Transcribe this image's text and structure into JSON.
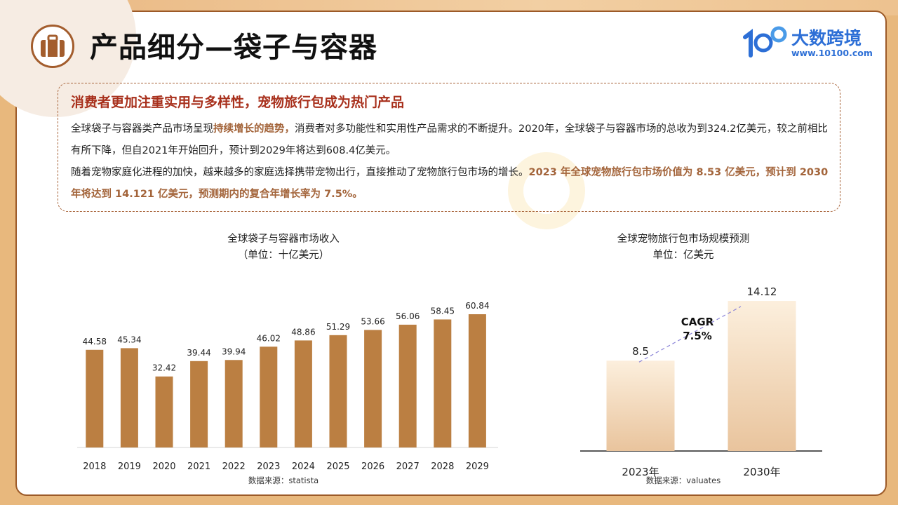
{
  "header": {
    "title": "产品细分—袋子与容器",
    "logo_name": "大数跨境",
    "logo_url": "www.10100.com"
  },
  "info": {
    "heading": "消费者更加注重实用与多样性，宠物旅行包成为热门产品",
    "p1_pre": "全球袋子与容器类产品市场呈现",
    "p1_hl": "持续增长的趋势，",
    "p1_post": "消费者对多功能性和实用性产品需求的不断提升。2020年，全球袋子与容器市场的总收为到324.2亿美元，较之前相比有所下降，但自2021年开始回升，预计到2029年将达到608.4亿美元。",
    "p2_pre": "随着宠物家庭化进程的加快，越来越多的家庭选择携带宠物出行，直接推动了宠物旅行包市场的增长。",
    "p2_hl": "2023 年全球宠物旅行包市场价值为 8.53 亿美元，预计到 2030 年将达到 14.121 亿美元，预测期内的复合年增长率为 7.5%。"
  },
  "colors": {
    "bar": "#bb7f42",
    "accent": "#a8301c",
    "highlight": "#a3643a"
  },
  "chart_data": [
    {
      "type": "bar",
      "title": "全球袋子与容器市场收入",
      "subtitle": "（单位：十亿美元）",
      "categories": [
        "2018",
        "2019",
        "2020",
        "2021",
        "2022",
        "2023",
        "2024",
        "2025",
        "2026",
        "2027",
        "2028",
        "2029"
      ],
      "values": [
        44.58,
        45.34,
        32.42,
        39.44,
        39.94,
        46.02,
        48.86,
        51.29,
        53.66,
        56.06,
        58.45,
        60.84
      ],
      "value_labels": [
        "44.58",
        "45.34",
        "32.42",
        "39.44",
        "39.94",
        "46.02",
        "48.86",
        "51.29",
        "53.66",
        "56.06",
        "58.45",
        "60.84"
      ],
      "source": "数据来源：statista",
      "ylim": [
        0,
        65
      ]
    },
    {
      "type": "bar",
      "title": "全球宠物旅行包市场规模预测",
      "subtitle": "单位：亿美元",
      "categories": [
        "2023年",
        "2030年"
      ],
      "values": [
        8.5,
        14.12
      ],
      "value_labels": [
        "8.5",
        "14.12"
      ],
      "annotation": [
        "CAGR",
        "7.5%"
      ],
      "source": "数据来源：valuates",
      "ylim": [
        0,
        16
      ]
    }
  ]
}
